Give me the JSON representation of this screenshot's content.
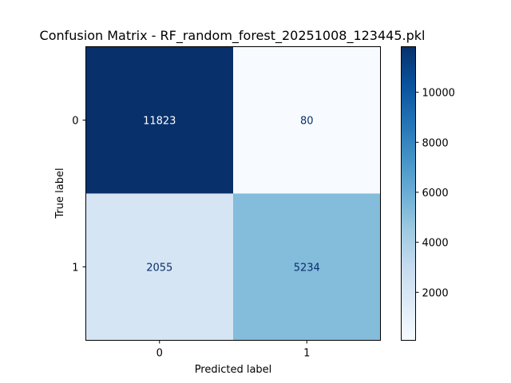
{
  "chart_data": {
    "type": "heatmap",
    "title": "Confusion Matrix - RF_random_forest_20251008_123445.pkl",
    "xlabel": "Predicted label",
    "ylabel": "True label",
    "x_categories": [
      "0",
      "1"
    ],
    "y_categories": [
      "0",
      "1"
    ],
    "values": [
      [
        11823,
        80
      ],
      [
        2055,
        5234
      ]
    ],
    "colormap": "Blues",
    "color_range": [
      80,
      11823
    ],
    "colorbar_ticks": [
      2000,
      4000,
      6000,
      8000,
      10000
    ],
    "colorbar_tick_labels": [
      "2000",
      "4000",
      "6000",
      "8000",
      "10000"
    ],
    "grid": false
  }
}
